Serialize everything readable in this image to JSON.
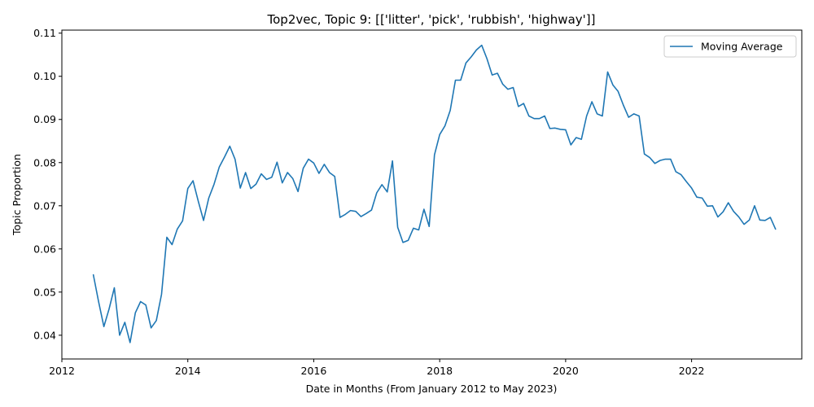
{
  "chart_data": {
    "type": "line",
    "title": "Top2vec, Topic 9: [['litter', 'pick', 'rubbish', 'highway']]",
    "xlabel": "Date in Months (From January 2012 to May 2023)",
    "ylabel": "Topic Proportion",
    "xlim": [
      2012.0,
      2023.75
    ],
    "ylim": [
      0.0345,
      0.1107
    ],
    "x_ticks": [
      2012,
      2014,
      2016,
      2018,
      2020,
      2022
    ],
    "x_tick_labels": [
      "2012",
      "2014",
      "2016",
      "2018",
      "2020",
      "2022"
    ],
    "y_ticks": [
      0.04,
      0.05,
      0.06,
      0.07,
      0.08,
      0.09,
      0.1,
      0.11
    ],
    "y_tick_labels": [
      "0.04",
      "0.05",
      "0.06",
      "0.07",
      "0.08",
      "0.09",
      "0.10",
      "0.11"
    ],
    "grid": false,
    "legend_position": "upper right",
    "series": [
      {
        "name": "Moving Average",
        "color": "#1f77b4",
        "x": [
          2012.5,
          2012.583,
          2012.667,
          2012.75,
          2012.833,
          2012.917,
          2013.0,
          2013.083,
          2013.167,
          2013.25,
          2013.333,
          2013.417,
          2013.5,
          2013.583,
          2013.667,
          2013.75,
          2013.833,
          2013.917,
          2014.0,
          2014.083,
          2014.167,
          2014.25,
          2014.333,
          2014.417,
          2014.5,
          2014.583,
          2014.667,
          2014.75,
          2014.833,
          2014.917,
          2015.0,
          2015.083,
          2015.167,
          2015.25,
          2015.333,
          2015.417,
          2015.5,
          2015.583,
          2015.667,
          2015.75,
          2015.833,
          2015.917,
          2016.0,
          2016.083,
          2016.167,
          2016.25,
          2016.333,
          2016.417,
          2016.5,
          2016.583,
          2016.667,
          2016.75,
          2016.833,
          2016.917,
          2017.0,
          2017.083,
          2017.167,
          2017.25,
          2017.333,
          2017.417,
          2017.5,
          2017.583,
          2017.667,
          2017.75,
          2017.833,
          2017.917,
          2018.0,
          2018.083,
          2018.167,
          2018.25,
          2018.333,
          2018.417,
          2018.5,
          2018.583,
          2018.667,
          2018.75,
          2018.833,
          2018.917,
          2019.0,
          2019.083,
          2019.167,
          2019.25,
          2019.333,
          2019.417,
          2019.5,
          2019.583,
          2019.667,
          2019.75,
          2019.833,
          2019.917,
          2020.0,
          2020.083,
          2020.167,
          2020.25,
          2020.333,
          2020.417,
          2020.5,
          2020.583,
          2020.667,
          2020.75,
          2020.833,
          2020.917,
          2021.0,
          2021.083,
          2021.167,
          2021.25,
          2021.333,
          2021.417,
          2021.5,
          2021.583,
          2021.667,
          2021.75,
          2021.833,
          2021.917,
          2022.0,
          2022.083,
          2022.167,
          2022.25,
          2022.333,
          2022.417,
          2022.5,
          2022.583,
          2022.667,
          2022.75,
          2022.833,
          2022.917,
          2023.0,
          2023.083,
          2023.167,
          2023.25,
          2023.333
        ],
        "values": [
          0.054,
          0.0478,
          0.042,
          0.0461,
          0.051,
          0.04,
          0.043,
          0.0383,
          0.0452,
          0.0478,
          0.047,
          0.0417,
          0.0434,
          0.0495,
          0.0627,
          0.061,
          0.0646,
          0.0665,
          0.074,
          0.0758,
          0.071,
          0.0666,
          0.0718,
          0.075,
          0.079,
          0.0813,
          0.0838,
          0.0808,
          0.0741,
          0.0777,
          0.074,
          0.075,
          0.0774,
          0.0761,
          0.0766,
          0.0801,
          0.0753,
          0.0777,
          0.0763,
          0.0733,
          0.0787,
          0.0808,
          0.0799,
          0.0775,
          0.0796,
          0.0777,
          0.0768,
          0.0673,
          0.068,
          0.0689,
          0.0687,
          0.0675,
          0.0682,
          0.069,
          0.073,
          0.0749,
          0.0732,
          0.0804,
          0.065,
          0.0615,
          0.062,
          0.0648,
          0.0644,
          0.0692,
          0.0652,
          0.0818,
          0.0865,
          0.0885,
          0.0921,
          0.0991,
          0.0991,
          0.1031,
          0.1045,
          0.1061,
          0.1072,
          0.1041,
          0.1003,
          0.1007,
          0.0982,
          0.097,
          0.0974,
          0.093,
          0.0937,
          0.0908,
          0.0902,
          0.0902,
          0.0908,
          0.0879,
          0.088,
          0.0877,
          0.0876,
          0.0841,
          0.0858,
          0.0854,
          0.0908,
          0.0941,
          0.0913,
          0.0908,
          0.101,
          0.098,
          0.0965,
          0.0933,
          0.0905,
          0.0913,
          0.0908,
          0.082,
          0.0812,
          0.0798,
          0.0805,
          0.0808,
          0.0808,
          0.0779,
          0.0772,
          0.0756,
          0.0741,
          0.072,
          0.0718,
          0.0699,
          0.07,
          0.0674,
          0.0686,
          0.0707,
          0.0687,
          0.0674,
          0.0657,
          0.0667,
          0.07,
          0.0667,
          0.0666,
          0.0673,
          0.0646
        ]
      }
    ]
  }
}
